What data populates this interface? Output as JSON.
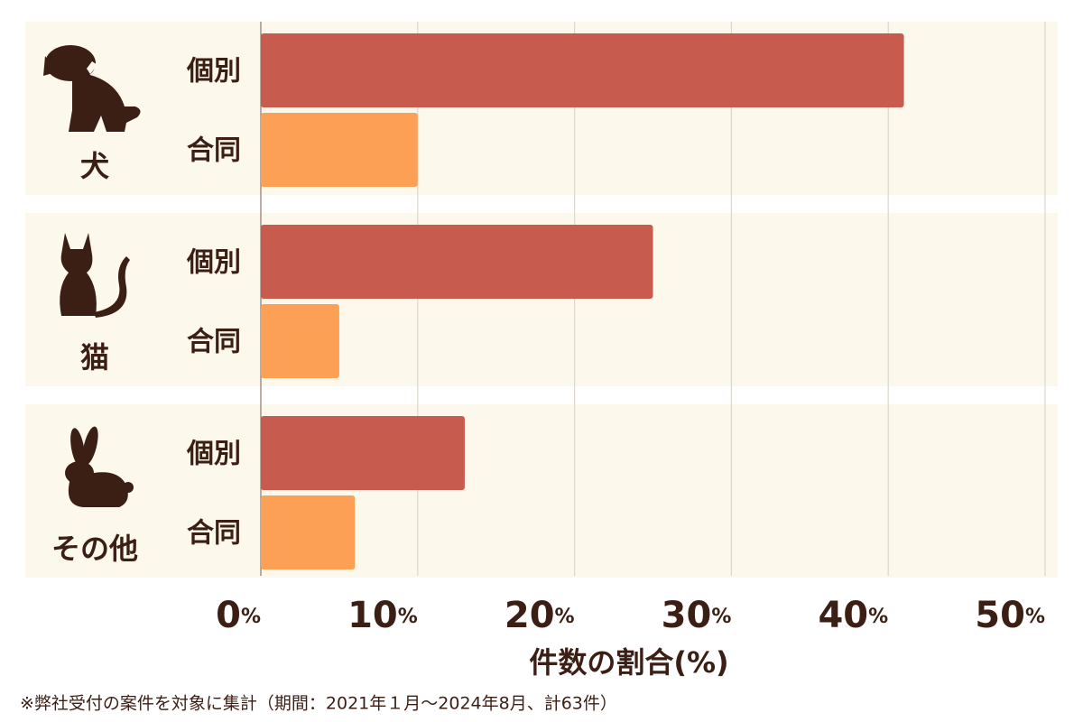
{
  "chart_data": {
    "type": "bar",
    "orientation": "horizontal",
    "categories": [
      "犬",
      "猫",
      "その他"
    ],
    "series": [
      {
        "name": "個別",
        "color": "#c75c4e",
        "values": [
          41,
          25,
          13
        ]
      },
      {
        "name": "合同",
        "color": "#fca055",
        "values": [
          10,
          5,
          6
        ]
      }
    ],
    "xlim": [
      0,
      50
    ],
    "xticks": [
      {
        "value": 0,
        "label": "0%"
      },
      {
        "value": 10,
        "label": "10%"
      },
      {
        "value": 20,
        "label": "20%"
      },
      {
        "value": 30,
        "label": "30%"
      },
      {
        "value": 40,
        "label": "40%"
      },
      {
        "value": 50,
        "label": "50%"
      }
    ],
    "grid": true,
    "xlabel": "件数の割合(%)",
    "note": "※弊社受付の案件を対象に集計（期間：2021年１月～2024年8月、計63件）"
  }
}
